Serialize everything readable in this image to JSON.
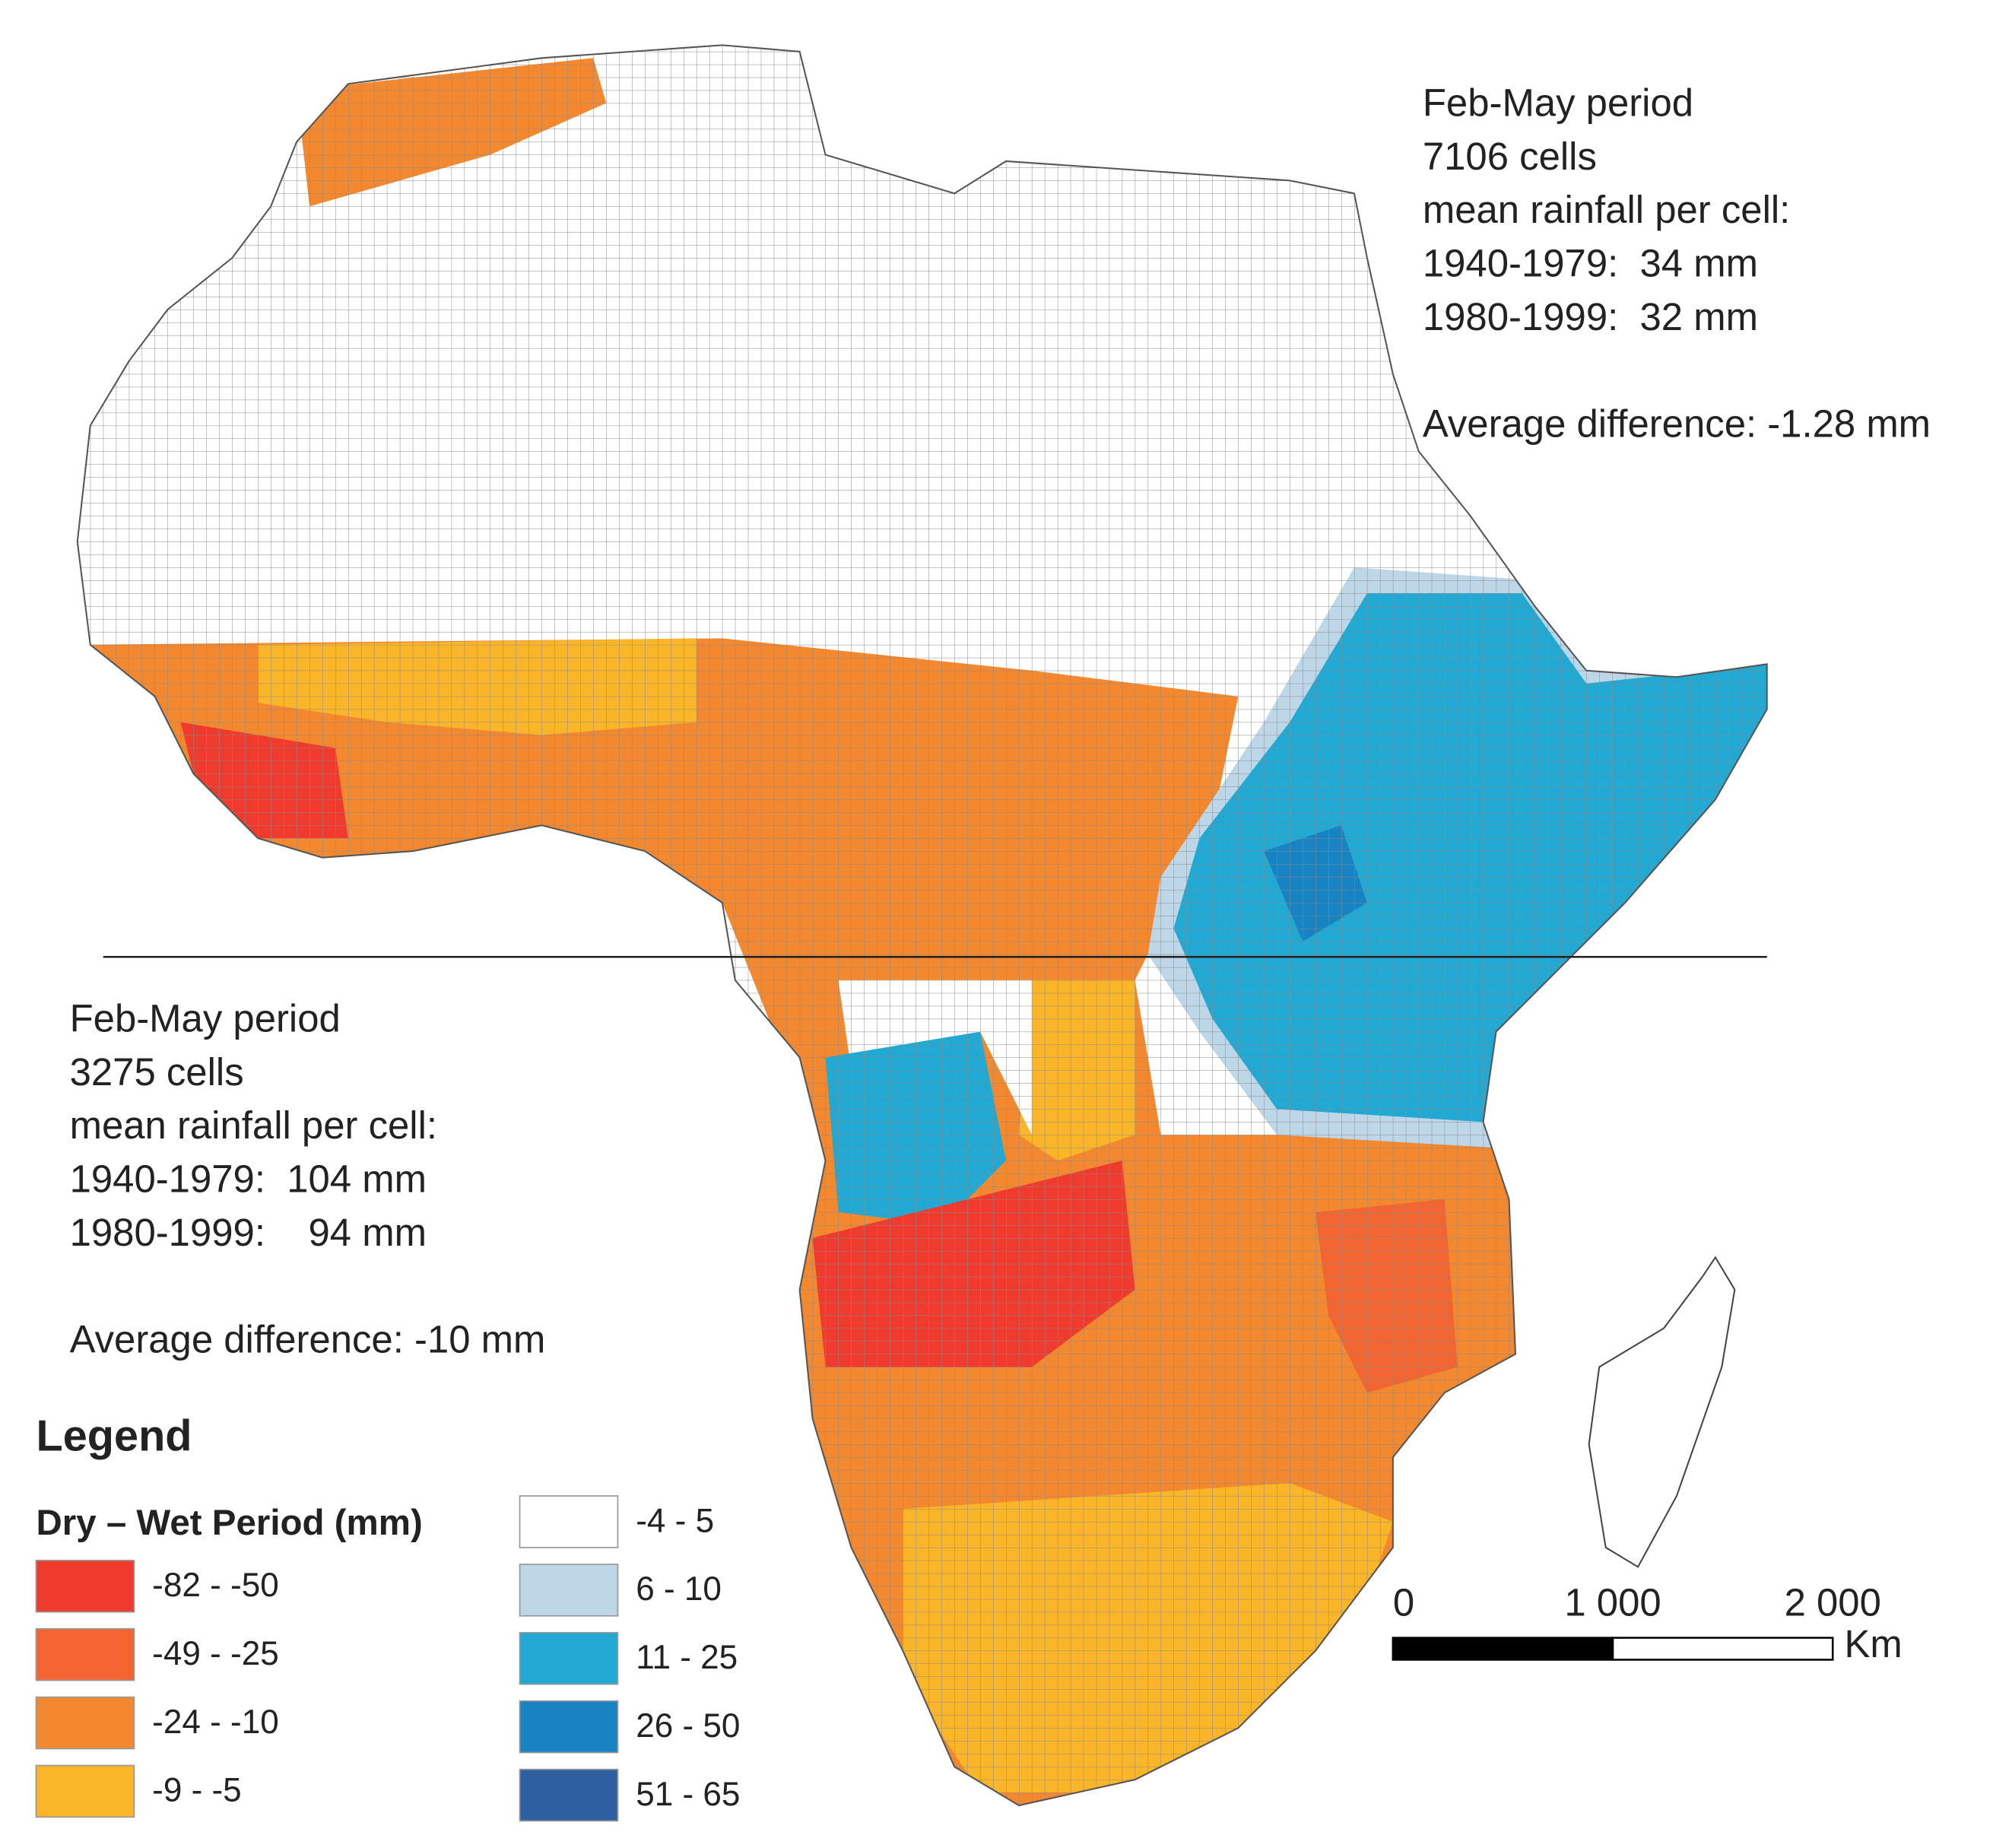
{
  "annotations": [
    {
      "lines": [
        "Feb-May period",
        "7106 cells",
        "mean rainfall per cell:",
        "1940-1979:  34 mm",
        "1980-1999:  32 mm"
      ],
      "difference": "Average difference: -1.28 mm"
    },
    {
      "lines": [
        "Feb-May period",
        "3275 cells",
        "mean rainfall per cell:",
        "1940-1979:  104 mm",
        "1980-1999:    94 mm"
      ],
      "difference": "Average difference: -10 mm"
    }
  ],
  "legend": {
    "title": "Legend",
    "subtitle": "Dry – Wet Period (mm)",
    "items": [
      {
        "label": "-82 - -50",
        "color": "#f03a2e"
      },
      {
        "label": "-49 - -25",
        "color": "#f26430"
      },
      {
        "label": "-24 - -10",
        "color": "#f4882f"
      },
      {
        "label": "-9 - -5",
        "color": "#fbb528"
      },
      {
        "label": "-4 - 5",
        "color": "#ffffff"
      },
      {
        "label": "6 - 10",
        "color": "#bdd7e9"
      },
      {
        "label": "11 - 25",
        "color": "#22a9d3"
      },
      {
        "label": "26 - 50",
        "color": "#1883c2"
      },
      {
        "label": "51 - 65",
        "color": "#2e5f9e"
      }
    ]
  },
  "scale_bar": {
    "ticks": [
      {
        "value": 0,
        "label": "0"
      },
      {
        "value": 1000,
        "label": "1 000"
      },
      {
        "value": 2000,
        "label": "2 000"
      }
    ],
    "unit": "Km"
  }
}
